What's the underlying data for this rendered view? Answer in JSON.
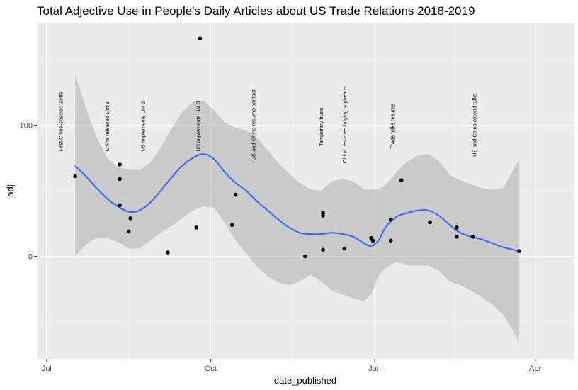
{
  "chart_data": {
    "type": "scatter",
    "title": "Total Adjective Use in People's Daily Articles about US Trade Relations 2018-2019",
    "xlabel": "date_published",
    "ylabel": "adj",
    "x_unit": "days since 2018-07-01",
    "xlim": [
      -5.5,
      296
    ],
    "ylim": [
      -78,
      178
    ],
    "x_ticks": [
      {
        "value": 0,
        "label": "Jul"
      },
      {
        "value": 92,
        "label": "Oct"
      },
      {
        "value": 184,
        "label": "Jan"
      },
      {
        "value": 274,
        "label": "Apr"
      }
    ],
    "y_ticks": [
      {
        "value": 0,
        "label": "0"
      },
      {
        "value": 100,
        "label": "100"
      }
    ],
    "points": [
      {
        "x": 16,
        "y": 61
      },
      {
        "x": 41,
        "y": 70
      },
      {
        "x": 41,
        "y": 59
      },
      {
        "x": 41,
        "y": 39
      },
      {
        "x": 46,
        "y": 19
      },
      {
        "x": 47,
        "y": 29
      },
      {
        "x": 68,
        "y": 3
      },
      {
        "x": 84,
        "y": 22
      },
      {
        "x": 86,
        "y": 166
      },
      {
        "x": 104,
        "y": 24
      },
      {
        "x": 106,
        "y": 47
      },
      {
        "x": 145,
        "y": 0
      },
      {
        "x": 155,
        "y": 33
      },
      {
        "x": 155,
        "y": 31
      },
      {
        "x": 155,
        "y": 5
      },
      {
        "x": 167,
        "y": 6
      },
      {
        "x": 182,
        "y": 14
      },
      {
        "x": 183,
        "y": 12
      },
      {
        "x": 193,
        "y": 28
      },
      {
        "x": 193,
        "y": 12
      },
      {
        "x": 199,
        "y": 58
      },
      {
        "x": 215,
        "y": 26
      },
      {
        "x": 230,
        "y": 22
      },
      {
        "x": 230,
        "y": 15
      },
      {
        "x": 239,
        "y": 15
      },
      {
        "x": 265,
        "y": 4
      }
    ],
    "smooth": {
      "x": [
        16,
        22,
        28,
        34,
        40,
        46,
        52,
        58,
        64,
        70,
        76,
        82,
        88,
        94,
        100,
        106,
        112,
        118,
        124,
        130,
        136,
        142,
        148,
        154,
        160,
        166,
        172,
        178,
        182,
        186,
        190,
        196,
        202,
        208,
        214,
        220,
        226,
        232,
        238,
        244,
        250,
        256,
        265
      ],
      "y": [
        69,
        61,
        52,
        44,
        38,
        34,
        35,
        41,
        50,
        60,
        69,
        75,
        78,
        74,
        64,
        56,
        50,
        42,
        35,
        28,
        22,
        18,
        17,
        17,
        18,
        17,
        15,
        10,
        8,
        12,
        22,
        30,
        33,
        35,
        35,
        31,
        24,
        18,
        15,
        13,
        10,
        7,
        4
      ],
      "lower": [
        0,
        9,
        14,
        14,
        11,
        6,
        6,
        12,
        18,
        23,
        29,
        35,
        38,
        37,
        25,
        12,
        2,
        -8,
        -15,
        -20,
        -22,
        -19,
        -14,
        -19,
        -26,
        -29,
        -32,
        -34,
        -29,
        -15,
        -9,
        -4,
        -7,
        -7,
        -7,
        -11,
        -19,
        -22,
        -26,
        -31,
        -37,
        -44,
        -65
      ],
      "upper": [
        139,
        113,
        91,
        75,
        68,
        66,
        66,
        71,
        83,
        97,
        110,
        118,
        119,
        111,
        102,
        98,
        96,
        90,
        81,
        71,
        63,
        56,
        51,
        50,
        57,
        59,
        57,
        51,
        51,
        51,
        54,
        64,
        72,
        77,
        78,
        73,
        62,
        58,
        55,
        52,
        51,
        52,
        74
      ]
    },
    "annotations": [
      {
        "x": 8,
        "y": 80,
        "text": "First China-specific tariffs"
      },
      {
        "x": 34,
        "y": 80,
        "text": "China releases List 3"
      },
      {
        "x": 54,
        "y": 80,
        "text": "US implements List 2"
      },
      {
        "x": 85,
        "y": 80,
        "text": "US implements List 3"
      },
      {
        "x": 116,
        "y": 73,
        "text": "US and China resume contact"
      },
      {
        "x": 154,
        "y": 84,
        "text": "Temporary truce"
      },
      {
        "x": 167,
        "y": 71,
        "text": "China resumes buying soybeans"
      },
      {
        "x": 194,
        "y": 82,
        "text": "Trade talks resume"
      },
      {
        "x": 240,
        "y": 76,
        "text": "US and China extend talks"
      }
    ]
  }
}
